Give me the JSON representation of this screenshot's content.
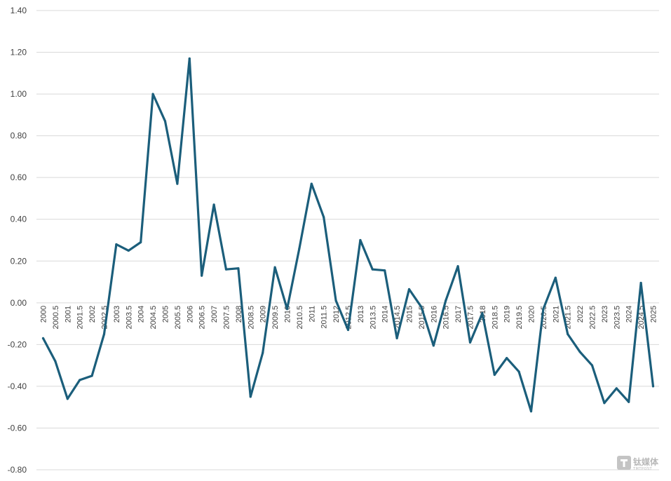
{
  "chart_data": {
    "type": "line",
    "title": "",
    "xlabel": "",
    "ylabel": "",
    "ylim": [
      -0.8,
      1.4
    ],
    "yticks": [
      "1.40",
      "1.20",
      "1.00",
      "0.80",
      "0.60",
      "0.40",
      "0.20",
      "0.00",
      "-0.20",
      "-0.40",
      "-0.60",
      "-0.80"
    ],
    "ytick_values": [
      1.4,
      1.2,
      1.0,
      0.8,
      0.6,
      0.4,
      0.2,
      0.0,
      -0.2,
      -0.4,
      -0.6,
      -0.8
    ],
    "grid": true,
    "legend": "none",
    "categories": [
      "2000",
      "2000.5",
      "2001",
      "2001.5",
      "2002",
      "2002.5",
      "2003",
      "2003.5",
      "2004",
      "2004.5",
      "2005",
      "2005.5",
      "2006",
      "2006.5",
      "2007",
      "2007.5",
      "2008",
      "2008.5",
      "2009",
      "2009.5",
      "2010",
      "2010.5",
      "2011",
      "2011.5",
      "2012",
      "2012.5",
      "2013",
      "2013.5",
      "2014",
      "2014.5",
      "2015",
      "2015.5",
      "2016",
      "2016.5",
      "2017",
      "2017.5",
      "2018",
      "2018.5",
      "2019",
      "2019.5",
      "2020",
      "2020.5",
      "2021",
      "2021.5",
      "2022",
      "2022.5",
      "2023",
      "2023.5",
      "2024",
      "2024.5",
      "2025"
    ],
    "series": [
      {
        "color": "#1b5e7b",
        "values": [
          -0.17,
          -0.28,
          -0.46,
          -0.37,
          -0.35,
          -0.15,
          0.28,
          0.25,
          0.29,
          1.0,
          0.87,
          0.57,
          1.17,
          0.13,
          0.47,
          0.16,
          0.165,
          -0.45,
          -0.24,
          0.17,
          -0.03,
          0.26,
          0.57,
          0.41,
          0.01,
          -0.13,
          0.3,
          0.16,
          0.155,
          -0.17,
          0.065,
          -0.02,
          -0.205,
          0.01,
          0.175,
          -0.19,
          -0.05,
          -0.345,
          -0.265,
          -0.33,
          -0.52,
          -0.03,
          0.12,
          -0.15,
          -0.235,
          -0.3,
          -0.48,
          -0.41,
          -0.475,
          0.095,
          -0.4
        ]
      }
    ]
  },
  "watermark": {
    "text": "钛媒体",
    "sub": "TMTPOST",
    "icon": "tmtpost-logo-icon"
  }
}
